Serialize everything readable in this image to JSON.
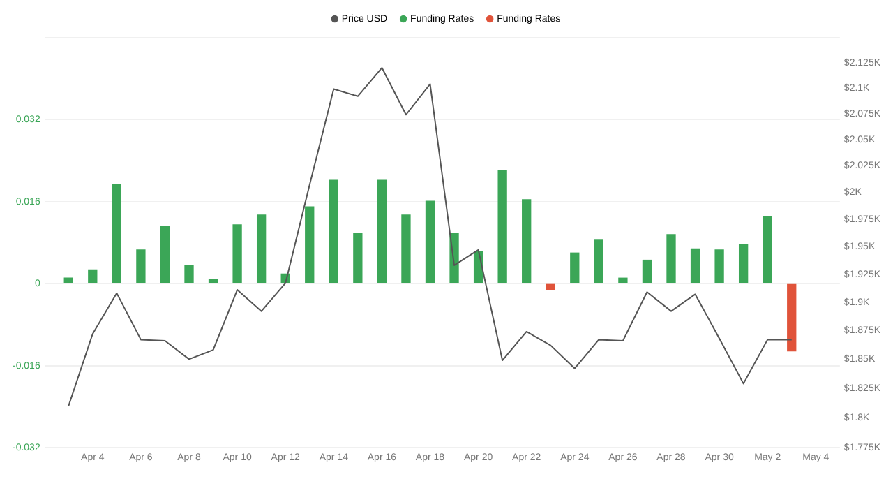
{
  "chart_data": {
    "type": "bar",
    "x": [
      "--04-03",
      "--04-04",
      "--04-05",
      "--04-06",
      "--04-07",
      "--04-08",
      "--04-09",
      "--04-10",
      "--04-11",
      "--04-12",
      "--04-13",
      "--04-14",
      "--04-15",
      "--04-16",
      "--04-17",
      "--04-18",
      "--04-19",
      "--04-20",
      "--04-21",
      "--04-22",
      "--04-23",
      "--04-24",
      "--04-25",
      "--04-26",
      "--04-27",
      "--04-28",
      "--04-29",
      "--04-30",
      "--05-01",
      "--05-02",
      "--05-03"
    ],
    "series": [
      {
        "name": "Price USD",
        "type": "line",
        "axis": "y2",
        "color": "#555555",
        "values": [
          1810,
          1872,
          1908,
          1867,
          1866,
          1850,
          1858,
          1911,
          1892,
          1917,
          2007,
          2099,
          2092,
          2120,
          2074,
          2104,
          1933,
          1947,
          1849,
          1874,
          1862,
          1842,
          1867,
          1866,
          1909,
          1892,
          1907,
          1868,
          1829,
          1867,
          1867
        ]
      },
      {
        "name": "Funding Rates",
        "color": "#3ba657",
        "values": [
          0.0011,
          0.0027,
          0.0194,
          0.0066,
          0.0112,
          0.0036,
          0.0008,
          0.0115,
          0.0134,
          0.0019,
          0.015,
          0.0202,
          0.0098,
          0.0202,
          0.0134,
          0.0161,
          0.0098,
          0.0063,
          0.0221,
          0.0164,
          null,
          0.006,
          0.0085,
          0.0011,
          0.0046,
          0.0096,
          0.0068,
          0.0066,
          0.0076,
          0.0131,
          null
        ]
      },
      {
        "name": "Funding Rates",
        "color": "#e0533a",
        "values": [
          null,
          null,
          null,
          null,
          null,
          null,
          null,
          null,
          null,
          null,
          null,
          null,
          null,
          null,
          null,
          null,
          null,
          null,
          null,
          null,
          -0.0011,
          null,
          null,
          null,
          null,
          null,
          null,
          null,
          null,
          null,
          -0.0131
        ]
      }
    ],
    "xlim": [
      "--04-02",
      "--05-05"
    ],
    "xticks": [
      {
        "value": "--04-04",
        "label": "Apr 4"
      },
      {
        "value": "--04-06",
        "label": "Apr 6"
      },
      {
        "value": "--04-08",
        "label": "Apr 8"
      },
      {
        "value": "--04-10",
        "label": "Apr 10"
      },
      {
        "value": "--04-12",
        "label": "Apr 12"
      },
      {
        "value": "--04-14",
        "label": "Apr 14"
      },
      {
        "value": "--04-16",
        "label": "Apr 16"
      },
      {
        "value": "--04-18",
        "label": "Apr 18"
      },
      {
        "value": "--04-20",
        "label": "Apr 20"
      },
      {
        "value": "--04-22",
        "label": "Apr 22"
      },
      {
        "value": "--04-24",
        "label": "Apr 24"
      },
      {
        "value": "--04-26",
        "label": "Apr 26"
      },
      {
        "value": "--04-28",
        "label": "Apr 28"
      },
      {
        "value": "--04-30",
        "label": "Apr 30"
      },
      {
        "value": "--05-02",
        "label": "May 2"
      },
      {
        "value": "--05-04",
        "label": "May 4"
      }
    ],
    "ylim": [
      -0.032,
      0.048
    ],
    "yticks": [
      -0.032,
      -0.016,
      0,
      0.016,
      0.032,
      {
        "value": 0.048,
        "label": null
      }
    ],
    "y2lim": [
      1775,
      2150
    ],
    "y2ticks": [
      {
        "value": 1775,
        "label": "$1.775K"
      },
      {
        "value": 1800,
        "label": "$1.8K"
      },
      {
        "value": 1825,
        "label": "$1.825K"
      },
      {
        "value": 1850,
        "label": "$1.85K"
      },
      {
        "value": 1875,
        "label": "$1.875K"
      },
      {
        "value": 1900,
        "label": "$1.9K"
      },
      {
        "value": 1925,
        "label": "$1.925K"
      },
      {
        "value": 1950,
        "label": "$1.95K"
      },
      {
        "value": 1975,
        "label": "$1.975K"
      },
      {
        "value": 2000,
        "label": "$2K"
      },
      {
        "value": 2025,
        "label": "$2.025K"
      },
      {
        "value": 2050,
        "label": "$2.05K"
      },
      {
        "value": 2075,
        "label": "$2.075K"
      },
      {
        "value": 2100,
        "label": "$2.1K"
      },
      {
        "value": 2125,
        "label": "$2.125K"
      },
      {
        "value": 2150,
        "label": null
      }
    ],
    "log": "y2",
    "grid": "y",
    "legend": "top",
    "marker": "none",
    "line_style": "solid"
  }
}
